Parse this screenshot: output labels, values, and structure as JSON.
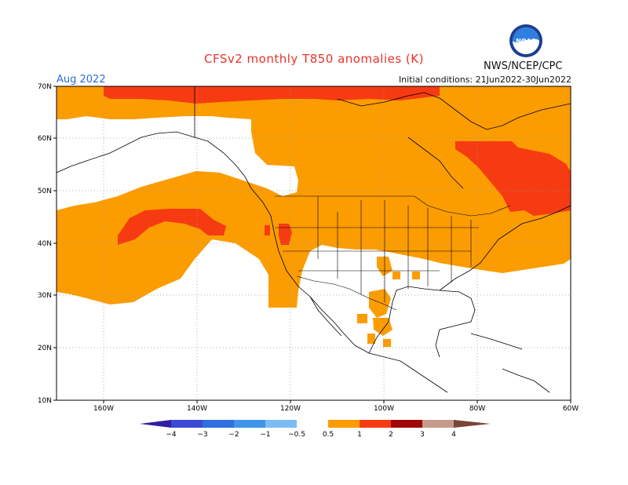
{
  "header": {
    "title": "CFSv2 monthly T850 anomalies (K)",
    "org": "NWS/NCEP/CPC",
    "month": "Aug 2022",
    "initial_conditions": "Initial conditions: 21Jun2022-30Jun2022",
    "logo_text": "NOAA"
  },
  "map": {
    "projection": "lat-lon",
    "lon_range": [
      -170,
      -60
    ],
    "lat_range": [
      10,
      70
    ],
    "lat_labels": [
      "70N",
      "60N",
      "50N",
      "40N",
      "30N",
      "20N",
      "10N"
    ],
    "lon_labels": [
      "160W",
      "140W",
      "120W",
      "100W",
      "80W",
      "60W"
    ]
  },
  "colorbar": {
    "tick_labels": [
      "−4",
      "−3",
      "−2",
      "−1",
      "−0.5",
      "0.5",
      "1",
      "2",
      "3",
      "4"
    ],
    "colors": [
      "#2f1fa6",
      "#3d48d4",
      "#2f6fe0",
      "#3f95ea",
      "#7cbcf4",
      "#ffffff",
      "#fb9c00",
      "#f63b12",
      "#a00808",
      "#c69a8c",
      "#7a4438"
    ]
  },
  "colors": {
    "anom_0_5_to_1": "#fb9c00",
    "anom_1_to_2": "#f63b12",
    "grid": "#9a9a9a",
    "coast": "#000000"
  }
}
